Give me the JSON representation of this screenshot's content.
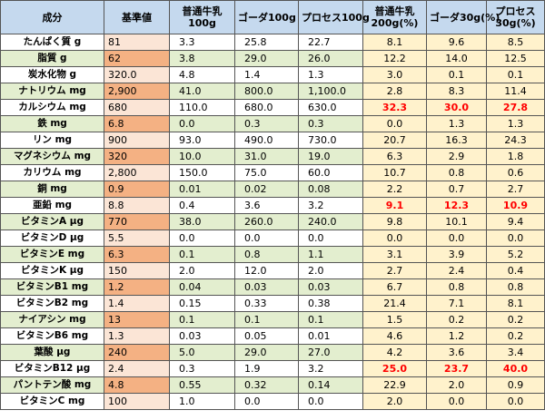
{
  "table": {
    "headers": [
      "成分",
      "基準値",
      "普通牛乳\n100g",
      "ゴーダ100g",
      "プロセス100g",
      "普通牛乳\n200g(%)",
      "ゴーダ30g(%)",
      "プロセス\n30g(%)"
    ],
    "rows": [
      {
        "name": "たんぱく質 g",
        "std": "81",
        "m100": "3.3",
        "g100": "25.8",
        "p100": "22.7",
        "m200": "8.1",
        "g30": "9.6",
        "p30": "8.5",
        "fill": "white",
        "std_fill": "light",
        "red": []
      },
      {
        "name": "脂質 g",
        "std": "62",
        "m100": "3.8",
        "g100": "29.0",
        "p100": "26.0",
        "m200": "12.2",
        "g30": "14.0",
        "p30": "12.5",
        "fill": "green",
        "std_fill": "dark",
        "red": []
      },
      {
        "name": "炭水化物 g",
        "std": "320.0",
        "m100": "4.8",
        "g100": "1.4",
        "p100": "1.3",
        "m200": "3.0",
        "g30": "0.1",
        "p30": "0.1",
        "fill": "white",
        "std_fill": "light",
        "red": []
      },
      {
        "name": "ナトリウム mg",
        "std": "2,900",
        "m100": "41.0",
        "g100": "800.0",
        "p100": "1,100.0",
        "m200": "2.8",
        "g30": "8.3",
        "p30": "11.4",
        "fill": "green",
        "std_fill": "dark",
        "red": []
      },
      {
        "name": "カルシウム mg",
        "std": "680",
        "m100": "110.0",
        "g100": "680.0",
        "p100": "630.0",
        "m200": "32.3",
        "g30": "30.0",
        "p30": "27.8",
        "fill": "white",
        "std_fill": "light",
        "red": [
          "m200",
          "g30",
          "p30"
        ]
      },
      {
        "name": "鉄 mg",
        "std": "6.8",
        "m100": "0.0",
        "g100": "0.3",
        "p100": "0.3",
        "m200": "0.0",
        "g30": "1.3",
        "p30": "1.3",
        "fill": "green",
        "std_fill": "dark",
        "red": []
      },
      {
        "name": "リン  mg",
        "std": "900",
        "m100": "93.0",
        "g100": "490.0",
        "p100": "730.0",
        "m200": "20.7",
        "g30": "16.3",
        "p30": "24.3",
        "fill": "white",
        "std_fill": "light",
        "red": []
      },
      {
        "name": "マグネシウム mg",
        "std": "320",
        "m100": "10.0",
        "g100": "31.0",
        "p100": "19.0",
        "m200": "6.3",
        "g30": "2.9",
        "p30": "1.8",
        "fill": "green",
        "std_fill": "dark",
        "red": []
      },
      {
        "name": "カリウム mg",
        "std": "2,800",
        "m100": "150.0",
        "g100": "75.0",
        "p100": "60.0",
        "m200": "10.7",
        "g30": "0.8",
        "p30": "0.6",
        "fill": "white",
        "std_fill": "light",
        "red": []
      },
      {
        "name": "銅 mg",
        "std": "0.9",
        "m100": "0.01",
        "g100": "0.02",
        "p100": "0.08",
        "m200": "2.2",
        "g30": "0.7",
        "p30": "2.7",
        "fill": "green",
        "std_fill": "dark",
        "red": []
      },
      {
        "name": "亜鉛 mg",
        "std": "8.8",
        "m100": "0.4",
        "g100": "3.6",
        "p100": "3.2",
        "m200": "9.1",
        "g30": "12.3",
        "p30": "10.9",
        "fill": "white",
        "std_fill": "light",
        "red": [
          "m200",
          "g30",
          "p30"
        ]
      },
      {
        "name": "ビタミンA μg",
        "std": "770",
        "m100": "38.0",
        "g100": "260.0",
        "p100": "240.0",
        "m200": "9.8",
        "g30": "10.1",
        "p30": "9.4",
        "fill": "green",
        "std_fill": "dark",
        "red": []
      },
      {
        "name": "ビタミンD μg",
        "std": "5.5",
        "m100": "0.0",
        "g100": "0.0",
        "p100": "0.0",
        "m200": "0.0",
        "g30": "0.0",
        "p30": "0.0",
        "fill": "white",
        "std_fill": "light",
        "red": []
      },
      {
        "name": "ビタミンE mg",
        "std": "6.3",
        "m100": "0.1",
        "g100": "0.8",
        "p100": "1.1",
        "m200": "3.1",
        "g30": "3.9",
        "p30": "5.2",
        "fill": "green",
        "std_fill": "dark",
        "red": []
      },
      {
        "name": "ビタミンK μg",
        "std": "150",
        "m100": "2.0",
        "g100": "12.0",
        "p100": "2.0",
        "m200": "2.7",
        "g30": "2.4",
        "p30": "0.4",
        "fill": "white",
        "std_fill": "light",
        "red": []
      },
      {
        "name": "ビタミンB1 mg",
        "std": "1.2",
        "m100": "0.04",
        "g100": "0.03",
        "p100": "0.03",
        "m200": "6.7",
        "g30": "0.8",
        "p30": "0.8",
        "fill": "green",
        "std_fill": "dark",
        "red": []
      },
      {
        "name": "ビタミンB2 mg",
        "std": "1.4",
        "m100": "0.15",
        "g100": "0.33",
        "p100": "0.38",
        "m200": "21.4",
        "g30": "7.1",
        "p30": "8.1",
        "fill": "white",
        "std_fill": "light",
        "red": []
      },
      {
        "name": "ナイアシン mg",
        "std": "13",
        "m100": "0.1",
        "g100": "0.1",
        "p100": "0.1",
        "m200": "1.5",
        "g30": "0.2",
        "p30": "0.2",
        "fill": "green",
        "std_fill": "dark",
        "red": []
      },
      {
        "name": "ビタミンB6 mg",
        "std": "1.3",
        "m100": "0.03",
        "g100": "0.05",
        "p100": "0.01",
        "m200": "4.6",
        "g30": "1.2",
        "p30": "0.2",
        "fill": "white",
        "std_fill": "light",
        "red": []
      },
      {
        "name": "葉酸 μg",
        "std": "240",
        "m100": "5.0",
        "g100": "29.0",
        "p100": "27.0",
        "m200": "4.2",
        "g30": "3.6",
        "p30": "3.4",
        "fill": "green",
        "std_fill": "dark",
        "red": []
      },
      {
        "name": "ビタミンB12 μg",
        "std": "2.4",
        "m100": "0.3",
        "g100": "1.9",
        "p100": "3.2",
        "m200": "25.0",
        "g30": "23.7",
        "p30": "40.0",
        "fill": "white",
        "std_fill": "light",
        "red": [
          "m200",
          "g30",
          "p30"
        ]
      },
      {
        "name": "パントテン酸 mg",
        "std": "4.8",
        "m100": "0.55",
        "g100": "0.32",
        "p100": "0.14",
        "m200": "22.9",
        "g30": "2.0",
        "p30": "0.9",
        "fill": "green",
        "std_fill": "dark",
        "red": []
      },
      {
        "name": "ビタミンC mg",
        "std": "100",
        "m100": "1.0",
        "g100": "0.0",
        "p100": "0.0",
        "m200": "2.0",
        "g30": "0.0",
        "p30": "0.0",
        "fill": "white",
        "std_fill": "light",
        "red": []
      }
    ]
  }
}
